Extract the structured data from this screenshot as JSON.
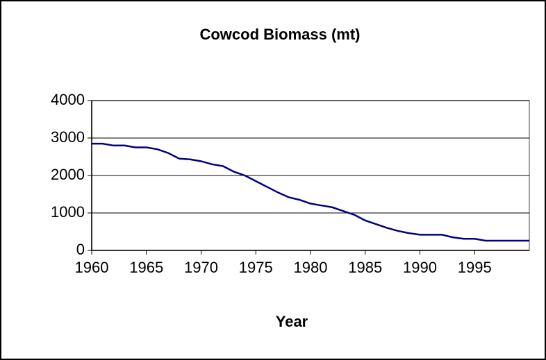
{
  "chart_data": {
    "type": "line",
    "title": "Cowcod Biomass (mt)",
    "x_label": "Year",
    "x": [
      1960,
      1961,
      1962,
      1963,
      1964,
      1965,
      1966,
      1967,
      1968,
      1969,
      1970,
      1971,
      1972,
      1973,
      1974,
      1975,
      1976,
      1977,
      1978,
      1979,
      1980,
      1981,
      1982,
      1983,
      1984,
      1985,
      1986,
      1987,
      1988,
      1989,
      1990,
      1991,
      1992,
      1993,
      1994,
      1995,
      1996,
      1997,
      1998,
      1999,
      2000
    ],
    "series": [
      {
        "name": "Cowcod Biomass",
        "color": "#000080",
        "values": [
          2850,
          2850,
          2800,
          2800,
          2750,
          2750,
          2700,
          2600,
          2450,
          2430,
          2380,
          2300,
          2250,
          2100,
          2000,
          1850,
          1700,
          1550,
          1420,
          1350,
          1250,
          1200,
          1150,
          1050,
          950,
          800,
          700,
          600,
          520,
          460,
          420,
          420,
          420,
          350,
          310,
          310,
          260,
          260,
          260,
          260,
          260
        ]
      }
    ],
    "xlim": [
      1960,
      2000
    ],
    "xticks": [
      1960,
      1965,
      1970,
      1975,
      1980,
      1985,
      1990,
      1995
    ],
    "ylim": [
      0,
      4000
    ],
    "yticks": [
      0,
      1000,
      2000,
      3000,
      4000
    ],
    "grid": true
  }
}
